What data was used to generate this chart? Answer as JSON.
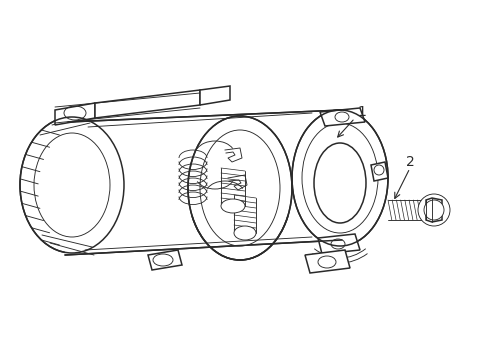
{
  "bg_color": "#ffffff",
  "line_color": "#2a2a2a",
  "lw": 1.1,
  "tlw": 0.65,
  "figsize": [
    4.89,
    3.6
  ],
  "dpi": 100
}
